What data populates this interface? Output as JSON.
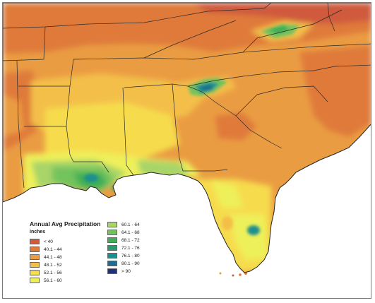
{
  "map": {
    "legend": {
      "title": "Annual Avg Precipitation",
      "units": "inches",
      "classes": [
        {
          "label": "< 40",
          "color": "#cf5a3c"
        },
        {
          "label": "40.1 - 44",
          "color": "#df7a3a"
        },
        {
          "label": "44.1 - 48",
          "color": "#ea9c42"
        },
        {
          "label": "48.1 - 52",
          "color": "#f3bf48"
        },
        {
          "label": "52.1 - 56",
          "color": "#f6dc4e"
        },
        {
          "label": "56.1 - 60",
          "color": "#eef05a"
        },
        {
          "label": "60.1 - 64",
          "color": "#a8d468"
        },
        {
          "label": "64.1 - 68",
          "color": "#73c35d"
        },
        {
          "label": "68.1 - 72",
          "color": "#3fae57"
        },
        {
          "label": "72.1 - 76",
          "color": "#2e9a6a"
        },
        {
          "label": "76.1 - 80",
          "color": "#1e8f8f"
        },
        {
          "label": "80.1 - 90",
          "color": "#1c6d8f"
        },
        {
          "label": "> 90",
          "color": "#22307a"
        }
      ]
    }
  }
}
